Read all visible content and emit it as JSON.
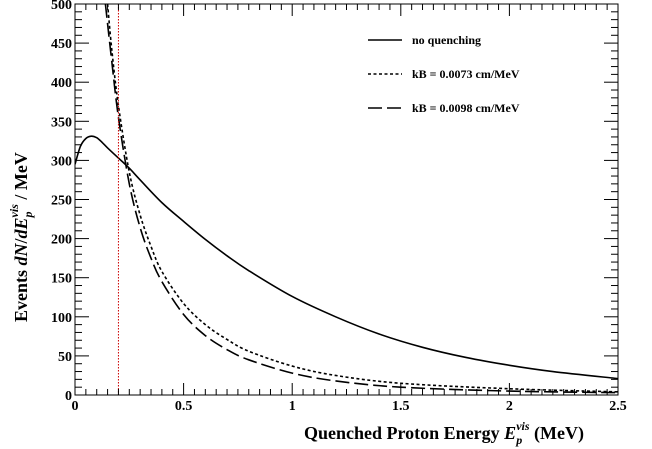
{
  "chart_data": {
    "type": "line",
    "xlabel": "Quenched Proton Energy E_p^vis (MeV)",
    "ylabel": "Events dN/dE_p^vis / MeV",
    "xlim": [
      0,
      2.5
    ],
    "ylim": [
      0,
      500
    ],
    "x_ticks": [
      "0",
      "0.5",
      "1",
      "1.5",
      "2",
      "2.5"
    ],
    "y_ticks": [
      "0",
      "50",
      "100",
      "150",
      "200",
      "250",
      "300",
      "350",
      "400",
      "450",
      "500"
    ],
    "vertical_line": {
      "x": 0.2,
      "color": "#cc0000",
      "style": "dotted"
    },
    "legend_position": "top-right",
    "series": [
      {
        "name": "no quenching",
        "style": "solid",
        "x": [
          0.0,
          0.025,
          0.05,
          0.075,
          0.1,
          0.125,
          0.15,
          0.2,
          0.25,
          0.3,
          0.4,
          0.5,
          0.6,
          0.7,
          0.8,
          1.0,
          1.2,
          1.4,
          1.6,
          1.8,
          2.0,
          2.2,
          2.5
        ],
        "y": [
          295,
          318,
          328,
          331,
          329,
          323,
          316,
          303,
          290,
          275,
          246,
          222,
          199,
          178,
          159,
          126,
          100,
          78,
          61,
          48,
          38,
          30,
          21
        ]
      },
      {
        "name": "kB = 0.0073 cm/MeV",
        "style": "dotted",
        "x": [
          0.15,
          0.17,
          0.2,
          0.25,
          0.3,
          0.35,
          0.4,
          0.5,
          0.6,
          0.7,
          0.8,
          1.0,
          1.2,
          1.5,
          2.0,
          2.5
        ],
        "y": [
          500,
          440,
          370,
          285,
          230,
          190,
          158,
          117,
          90,
          71,
          56,
          37,
          25,
          15,
          8,
          4
        ]
      },
      {
        "name": "kB = 0.0098 cm/MeV",
        "style": "dashed",
        "x": [
          0.14,
          0.17,
          0.2,
          0.25,
          0.3,
          0.35,
          0.4,
          0.5,
          0.6,
          0.7,
          0.8,
          1.0,
          1.2,
          1.5,
          2.0,
          2.5
        ],
        "y": [
          500,
          425,
          355,
          270,
          214,
          175,
          145,
          103,
          76,
          58,
          45,
          28,
          18,
          10,
          5,
          3
        ]
      }
    ]
  }
}
